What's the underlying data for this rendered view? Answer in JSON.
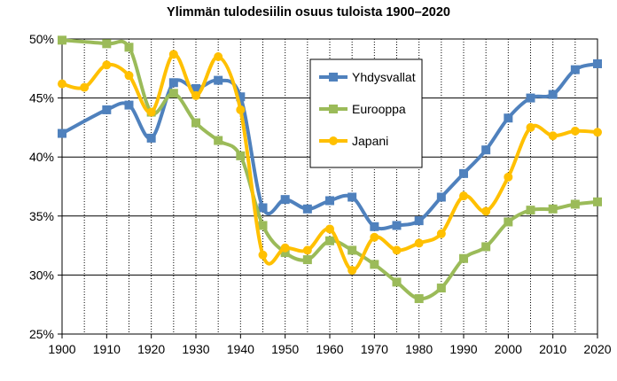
{
  "chart_data": {
    "type": "line",
    "title": "Ylimmän tulodesiilin osuus tuloista 1900–2020",
    "xlabel": "",
    "ylabel": "",
    "xlim": [
      1900,
      2020
    ],
    "ylim": [
      25,
      50
    ],
    "x_ticks": [
      1900,
      1910,
      1920,
      1930,
      1940,
      1950,
      1960,
      1970,
      1980,
      1990,
      2000,
      2010,
      2020
    ],
    "y_ticks": [
      "25%",
      "30%",
      "35%",
      "40%",
      "45%",
      "50%"
    ],
    "grid": true,
    "legend_position": "center-top",
    "series": [
      {
        "name": "Yhdysvallat",
        "color": "#4f81bd",
        "marker": "square",
        "points": [
          [
            1900,
            42.0
          ],
          [
            1910,
            44.0
          ],
          [
            1915,
            44.4
          ],
          [
            1920,
            41.6
          ],
          [
            1925,
            46.3
          ],
          [
            1930,
            45.8
          ],
          [
            1935,
            46.5
          ],
          [
            1940,
            45.1
          ],
          [
            1945,
            35.7
          ],
          [
            1950,
            36.4
          ],
          [
            1955,
            35.6
          ],
          [
            1960,
            36.3
          ],
          [
            1965,
            36.6
          ],
          [
            1970,
            34.1
          ],
          [
            1975,
            34.2
          ],
          [
            1980,
            34.6
          ],
          [
            1985,
            36.6
          ],
          [
            1990,
            38.6
          ],
          [
            1995,
            40.6
          ],
          [
            2000,
            43.3
          ],
          [
            2005,
            45.0
          ],
          [
            2010,
            45.3
          ],
          [
            2015,
            47.4
          ],
          [
            2020,
            47.9
          ]
        ]
      },
      {
        "name": "Eurooppa",
        "color": "#9bbb59",
        "marker": "square",
        "points": [
          [
            1900,
            49.9
          ],
          [
            1910,
            49.6
          ],
          [
            1915,
            49.3
          ],
          [
            1920,
            43.8
          ],
          [
            1925,
            45.4
          ],
          [
            1930,
            42.9
          ],
          [
            1935,
            41.4
          ],
          [
            1940,
            40.1
          ],
          [
            1945,
            34.2
          ],
          [
            1950,
            31.9
          ],
          [
            1955,
            31.3
          ],
          [
            1960,
            32.9
          ],
          [
            1965,
            32.1
          ],
          [
            1970,
            30.9
          ],
          [
            1975,
            29.4
          ],
          [
            1980,
            28.0
          ],
          [
            1985,
            28.9
          ],
          [
            1990,
            31.4
          ],
          [
            1995,
            32.4
          ],
          [
            2000,
            34.5
          ],
          [
            2005,
            35.5
          ],
          [
            2010,
            35.6
          ],
          [
            2015,
            36.0
          ],
          [
            2020,
            36.2
          ]
        ]
      },
      {
        "name": "Japani",
        "color": "#ffc000",
        "marker": "circle",
        "points": [
          [
            1900,
            46.2
          ],
          [
            1905,
            45.9
          ],
          [
            1910,
            47.8
          ],
          [
            1915,
            46.9
          ],
          [
            1920,
            43.8
          ],
          [
            1925,
            48.7
          ],
          [
            1930,
            45.2
          ],
          [
            1935,
            48.5
          ],
          [
            1940,
            44.0
          ],
          [
            1945,
            31.7
          ],
          [
            1950,
            32.3
          ],
          [
            1955,
            32.1
          ],
          [
            1960,
            33.9
          ],
          [
            1965,
            30.4
          ],
          [
            1970,
            33.2
          ],
          [
            1975,
            32.1
          ],
          [
            1980,
            32.7
          ],
          [
            1985,
            33.5
          ],
          [
            1990,
            36.7
          ],
          [
            1995,
            35.4
          ],
          [
            2000,
            38.3
          ],
          [
            2005,
            42.5
          ],
          [
            2010,
            41.8
          ],
          [
            2015,
            42.2
          ],
          [
            2020,
            42.1
          ]
        ]
      }
    ]
  }
}
